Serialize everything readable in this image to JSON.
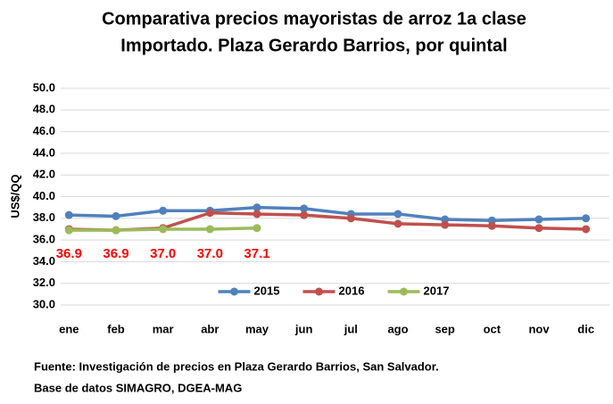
{
  "chart_data": {
    "type": "line",
    "title": [
      "Comparativa precios mayoristas de arroz 1a clase",
      "Importado. Plaza Gerardo Barrios, por quintal"
    ],
    "ylabel": "US$/QQ",
    "categories": [
      "ene",
      "feb",
      "mar",
      "abr",
      "may",
      "jun",
      "jul",
      "ago",
      "sep",
      "oct",
      "nov",
      "dic"
    ],
    "series": [
      {
        "name": "2015",
        "color": "#4f81bd",
        "values": [
          38.3,
          38.2,
          38.7,
          38.7,
          39.0,
          38.9,
          38.4,
          38.4,
          37.9,
          37.8,
          37.9,
          38.0
        ]
      },
      {
        "name": "2016",
        "color": "#c0504d",
        "values": [
          37.0,
          36.9,
          37.1,
          38.5,
          38.4,
          38.3,
          38.0,
          37.5,
          37.4,
          37.3,
          37.1,
          37.0
        ]
      },
      {
        "name": "2017",
        "color": "#9bbb59",
        "values": [
          36.9,
          36.9,
          37.0,
          37.0,
          37.1,
          null,
          null,
          null,
          null,
          null,
          null,
          null
        ],
        "value_labels": [
          "36.9",
          "36.9",
          "37.0",
          "37.0",
          "37.1",
          null,
          null,
          null,
          null,
          null,
          null,
          null
        ],
        "label_color": "#ff0000"
      }
    ],
    "ylim": [
      30,
      50
    ],
    "yticks": [
      {
        "value": 30,
        "label": "30.0"
      },
      {
        "value": 32,
        "label": "32.0"
      },
      {
        "value": 34,
        "label": "34.0"
      },
      {
        "value": 36,
        "label": "36.0"
      },
      {
        "value": 38,
        "label": "38.0"
      },
      {
        "value": 40,
        "label": "40.0"
      },
      {
        "value": 42,
        "label": "42.0"
      },
      {
        "value": 44,
        "label": "44.0"
      },
      {
        "value": 46,
        "label": "46.0"
      },
      {
        "value": 48,
        "label": "48.0"
      },
      {
        "value": 50,
        "label": "50.0"
      }
    ],
    "grid": true,
    "legend": "lower center",
    "source": [
      "Fuente: Investigación de precios en Plaza Gerardo Barrios, San Salvador.",
      "Base de datos SIMAGRO, DGEA-MAG"
    ]
  }
}
